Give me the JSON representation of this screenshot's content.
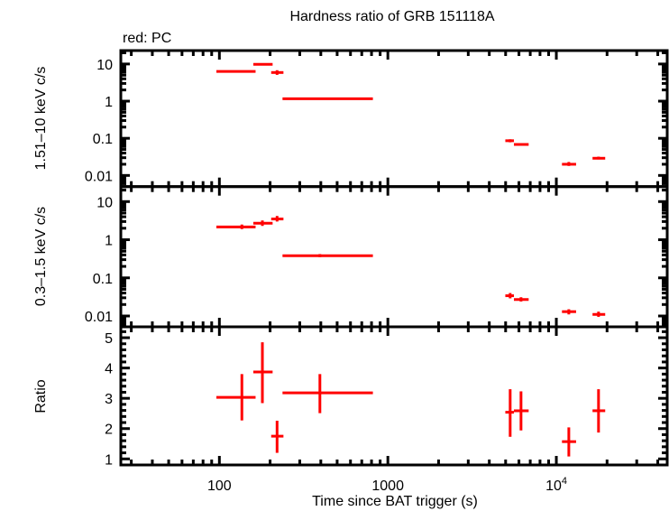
{
  "chart_data": [
    {
      "type": "scatter",
      "panel": "top",
      "title": "Hardness ratio of GRB 151118A",
      "legend_text": "red: PC",
      "ylabel": "1.51–10 keV c/s",
      "yscale": "log",
      "ylim": [
        0.005,
        23
      ],
      "yticks": [
        {
          "v": 10,
          "label": "10"
        },
        {
          "v": 1,
          "label": "1"
        },
        {
          "v": 0.1,
          "label": "0.1"
        },
        {
          "v": 0.01,
          "label": "0.01"
        }
      ],
      "color": "#ff0000",
      "points": [
        {
          "x": 136,
          "xlo": 96,
          "xhi": 164,
          "y": 6.3,
          "ylo": 6.0,
          "yhi": 6.6
        },
        {
          "x": 180,
          "xlo": 159,
          "xhi": 207,
          "y": 9.8,
          "ylo": 9.2,
          "yhi": 10.5
        },
        {
          "x": 220,
          "xlo": 203,
          "xhi": 240,
          "y": 5.9,
          "ylo": 5.1,
          "yhi": 6.8
        },
        {
          "x": 395,
          "xlo": 237,
          "xhi": 815,
          "y": 1.16,
          "ylo": 1.1,
          "yhi": 1.22
        },
        {
          "x": 5320,
          "xlo": 4980,
          "xhi": 5600,
          "y": 0.086,
          "ylo": 0.078,
          "yhi": 0.094
        },
        {
          "x": 6170,
          "xlo": 5600,
          "xhi": 6850,
          "y": 0.068,
          "ylo": 0.063,
          "yhi": 0.073
        },
        {
          "x": 11860,
          "xlo": 10800,
          "xhi": 13100,
          "y": 0.02,
          "ylo": 0.018,
          "yhi": 0.023
        },
        {
          "x": 17800,
          "xlo": 16400,
          "xhi": 19500,
          "y": 0.029,
          "ylo": 0.027,
          "yhi": 0.032
        }
      ]
    },
    {
      "type": "scatter",
      "panel": "middle",
      "ylabel": "0.3–1.5 keV c/s",
      "yscale": "log",
      "ylim": [
        0.0052,
        24.7
      ],
      "yticks": [
        {
          "v": 10,
          "label": "10"
        },
        {
          "v": 1,
          "label": "1"
        },
        {
          "v": 0.1,
          "label": "0.1"
        },
        {
          "v": 0.01,
          "label": "0.01"
        }
      ],
      "color": "#ff0000",
      "points": [
        {
          "x": 136,
          "xlo": 96,
          "xhi": 164,
          "y": 2.17,
          "ylo": 1.9,
          "yhi": 2.5
        },
        {
          "x": 180,
          "xlo": 159,
          "xhi": 207,
          "y": 2.7,
          "ylo": 2.3,
          "yhi": 3.2
        },
        {
          "x": 220,
          "xlo": 203,
          "xhi": 240,
          "y": 3.5,
          "ylo": 3.0,
          "yhi": 4.2
        },
        {
          "x": 395,
          "xlo": 237,
          "xhi": 815,
          "y": 0.38,
          "ylo": 0.35,
          "yhi": 0.42
        },
        {
          "x": 5320,
          "xlo": 4980,
          "xhi": 5600,
          "y": 0.034,
          "ylo": 0.029,
          "yhi": 0.04
        },
        {
          "x": 6170,
          "xlo": 5600,
          "xhi": 6850,
          "y": 0.027,
          "ylo": 0.024,
          "yhi": 0.031
        },
        {
          "x": 11860,
          "xlo": 10800,
          "xhi": 13100,
          "y": 0.013,
          "ylo": 0.011,
          "yhi": 0.015
        },
        {
          "x": 17800,
          "xlo": 16400,
          "xhi": 19500,
          "y": 0.011,
          "ylo": 0.0095,
          "yhi": 0.013
        }
      ]
    },
    {
      "type": "scatter",
      "panel": "bottom",
      "ylabel": "Ratio",
      "xlabel": "Time since BAT trigger (s)",
      "yscale": "linear",
      "ylim": [
        0.8,
        5.36
      ],
      "yticks": [
        {
          "v": 1,
          "label": "1"
        },
        {
          "v": 2,
          "label": "2"
        },
        {
          "v": 3,
          "label": "3"
        },
        {
          "v": 4,
          "label": "4"
        },
        {
          "v": 5,
          "label": "5"
        }
      ],
      "color": "#ff0000",
      "points": [
        {
          "x": 136,
          "xlo": 96,
          "xhi": 164,
          "y": 3.03,
          "ylo": 2.27,
          "yhi": 3.8
        },
        {
          "x": 180,
          "xlo": 159,
          "xhi": 207,
          "y": 3.87,
          "ylo": 2.84,
          "yhi": 4.85
        },
        {
          "x": 220,
          "xlo": 203,
          "xhi": 240,
          "y": 1.75,
          "ylo": 1.2,
          "yhi": 2.26
        },
        {
          "x": 395,
          "xlo": 237,
          "xhi": 815,
          "y": 3.18,
          "ylo": 2.51,
          "yhi": 3.8
        },
        {
          "x": 5320,
          "xlo": 4980,
          "xhi": 5600,
          "y": 2.54,
          "ylo": 1.73,
          "yhi": 3.3
        },
        {
          "x": 6170,
          "xlo": 5600,
          "xhi": 6850,
          "y": 2.59,
          "ylo": 1.94,
          "yhi": 3.23
        },
        {
          "x": 11860,
          "xlo": 10800,
          "xhi": 13100,
          "y": 1.57,
          "ylo": 1.08,
          "yhi": 2.04
        },
        {
          "x": 17800,
          "xlo": 16400,
          "xhi": 19500,
          "y": 2.59,
          "ylo": 1.87,
          "yhi": 3.3
        }
      ]
    }
  ],
  "x_axis": {
    "scale": "log",
    "xlim": [
      26,
      45500
    ],
    "ticks": [
      {
        "v": 100,
        "label": "100"
      },
      {
        "v": 1000,
        "label": "1000"
      },
      {
        "v": 10000,
        "label": "10",
        "sup": "4"
      }
    ]
  }
}
